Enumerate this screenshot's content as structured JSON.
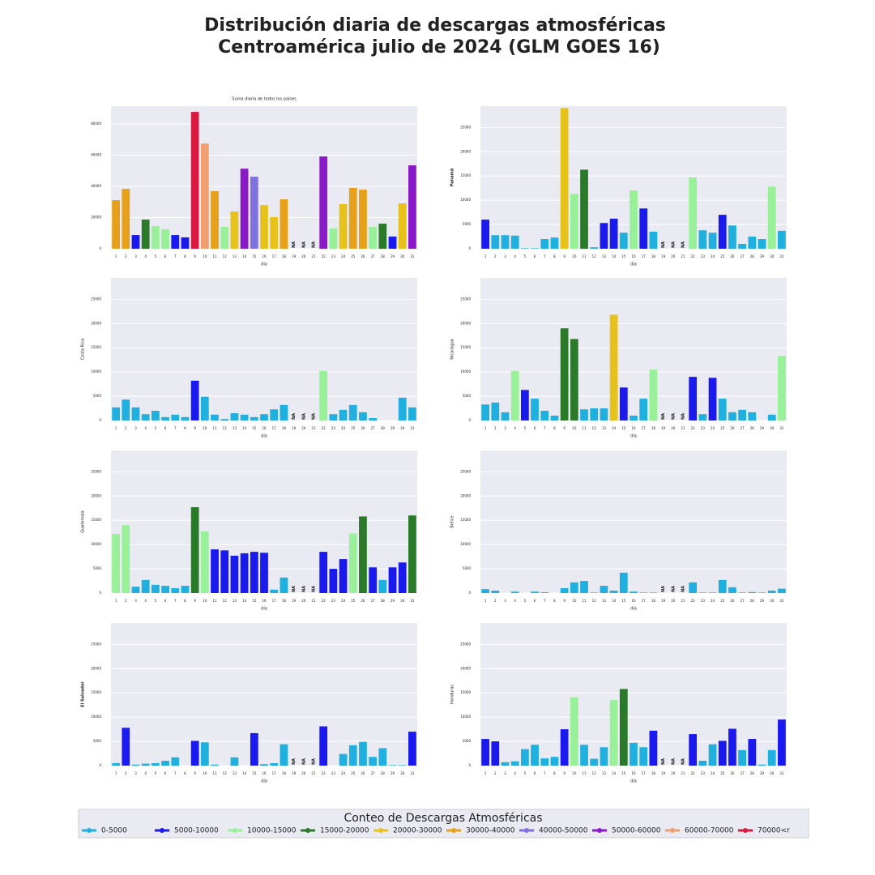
{
  "title": [
    "Distribución diaria de descargas atmosféricas",
    "Centroamérica julio de 2024 (GLM GOES 16)"
  ],
  "chart_data": [
    {
      "type": "bar",
      "title": "Suma diaria de todos los países",
      "xlabel": "día",
      "na_label": "NA",
      "grid": true,
      "categories": [
        "1",
        "2",
        "3",
        "4",
        "5",
        "6",
        "7",
        "8",
        "9",
        "10",
        "11",
        "12",
        "13",
        "14",
        "15",
        "16",
        "17",
        "18",
        "19",
        "20",
        "21",
        "22",
        "23",
        "24",
        "25",
        "26",
        "27",
        "28",
        "29",
        "30",
        "31"
      ],
      "values": [
        31200,
        38400,
        8800,
        18700,
        14500,
        12500,
        8800,
        7300,
        87800,
        67500,
        36900,
        14000,
        23900,
        51400,
        46200,
        28000,
        20300,
        31700,
        null,
        null,
        null,
        59200,
        13000,
        28600,
        39000,
        37900,
        14000,
        16100,
        7800,
        29100,
        53500
      ],
      "colors": [
        "#e6a01a",
        "#e6a01a",
        "#1a1aee",
        "#2a7a2a",
        "#98f098",
        "#98f098",
        "#1a1aee",
        "#1a1aee",
        "#d81a40",
        "#f0a070",
        "#e6a01a",
        "#98f098",
        "#e6c21a",
        "#8a1ac8",
        "#8070e0",
        "#e6c21a",
        "#e6c21a",
        "#e6a01a",
        null,
        null,
        null,
        "#8a1ac8",
        "#98f098",
        "#e6c21a",
        "#e6a01a",
        "#e6a01a",
        "#98f098",
        "#2a7a2a",
        "#1a1aee",
        "#e6c21a",
        "#8a1ac8"
      ],
      "ylim": [
        0,
        91500
      ],
      "yticks": [
        0,
        20000,
        40000,
        60000,
        80000
      ]
    },
    {
      "type": "bar",
      "ylabel": "Panamá",
      "ylabel_color": "#e00000",
      "xlabel": "día",
      "na_label": "NA",
      "grid": true,
      "categories": [
        "1",
        "2",
        "3",
        "4",
        "5",
        "6",
        "7",
        "8",
        "9",
        "10",
        "11",
        "12",
        "13",
        "14",
        "15",
        "16",
        "17",
        "18",
        "19",
        "20",
        "21",
        "22",
        "23",
        "24",
        "25",
        "26",
        "27",
        "28",
        "29",
        "30",
        "31"
      ],
      "values": [
        6000,
        2800,
        2800,
        2700,
        100,
        100,
        2000,
        2300,
        29000,
        11300,
        16300,
        300,
        5300,
        6200,
        3300,
        12000,
        8300,
        3500,
        null,
        null,
        null,
        14700,
        3800,
        3300,
        7000,
        4800,
        1000,
        2500,
        2000,
        12800,
        3700
      ],
      "colors": [
        "#1a1aee",
        "#1fb0e0",
        "#1fb0e0",
        "#1fb0e0",
        "#1fb0e0",
        "#1fb0e0",
        "#1fb0e0",
        "#1fb0e0",
        "#e6c21a",
        "#98f098",
        "#2a7a2a",
        "#1fb0e0",
        "#1a1aee",
        "#1a1aee",
        "#1fb0e0",
        "#98f098",
        "#1a1aee",
        "#1fb0e0",
        null,
        null,
        null,
        "#98f098",
        "#1fb0e0",
        "#1fb0e0",
        "#1a1aee",
        "#1fb0e0",
        "#1fb0e0",
        "#1fb0e0",
        "#1fb0e0",
        "#98f098",
        "#1fb0e0"
      ],
      "ylim": [
        0,
        29400
      ],
      "yticks": [
        0,
        5000,
        10000,
        15000,
        20000,
        25000
      ]
    },
    {
      "type": "bar",
      "ylabel": "Costa Rica",
      "ylabel_color": "#3050c0",
      "xlabel": "día",
      "na_label": "NA",
      "grid": true,
      "categories": [
        "1",
        "2",
        "3",
        "4",
        "5",
        "6",
        "7",
        "8",
        "9",
        "10",
        "11",
        "12",
        "13",
        "14",
        "15",
        "16",
        "17",
        "18",
        "19",
        "20",
        "21",
        "22",
        "23",
        "24",
        "25",
        "26",
        "27",
        "28",
        "29",
        "30",
        "31"
      ],
      "values": [
        2700,
        4300,
        2700,
        1300,
        2000,
        700,
        1200,
        700,
        8200,
        4900,
        1200,
        300,
        1500,
        1200,
        700,
        1300,
        2300,
        3200,
        null,
        null,
        null,
        10200,
        1300,
        2200,
        3200,
        1700,
        500,
        0,
        0,
        4700,
        2700
      ],
      "colors": [
        "#1fb0e0",
        "#1fb0e0",
        "#1fb0e0",
        "#1fb0e0",
        "#1fb0e0",
        "#1fb0e0",
        "#1fb0e0",
        "#1fb0e0",
        "#1a1aee",
        "#1fb0e0",
        "#1fb0e0",
        "#1fb0e0",
        "#1fb0e0",
        "#1fb0e0",
        "#1fb0e0",
        "#1fb0e0",
        "#1fb0e0",
        "#1fb0e0",
        null,
        null,
        null,
        "#98f098",
        "#1fb0e0",
        "#1fb0e0",
        "#1fb0e0",
        "#1fb0e0",
        "#1fb0e0",
        "#1fb0e0",
        "#1fb0e0",
        "#1fb0e0",
        "#1fb0e0"
      ],
      "ylim": [
        0,
        29400
      ],
      "yticks": [
        0,
        5000,
        10000,
        15000,
        20000,
        25000
      ]
    },
    {
      "type": "bar",
      "ylabel": "Nicaragua",
      "ylabel_color": "#40a0d0",
      "xlabel": "día",
      "na_label": "NA",
      "grid": true,
      "categories": [
        "1",
        "2",
        "3",
        "4",
        "5",
        "6",
        "7",
        "8",
        "9",
        "10",
        "11",
        "12",
        "13",
        "14",
        "15",
        "16",
        "17",
        "18",
        "19",
        "20",
        "21",
        "22",
        "23",
        "24",
        "25",
        "26",
        "27",
        "28",
        "29",
        "30",
        "31"
      ],
      "values": [
        3300,
        3700,
        1700,
        10200,
        6300,
        4500,
        2000,
        1000,
        19000,
        16800,
        2300,
        2500,
        2500,
        21800,
        6800,
        1000,
        4500,
        10500,
        null,
        null,
        null,
        9000,
        1300,
        8800,
        4500,
        1700,
        2200,
        1700,
        0,
        1200,
        13300
      ],
      "colors": [
        "#1fb0e0",
        "#1fb0e0",
        "#1fb0e0",
        "#98f098",
        "#1a1aee",
        "#1fb0e0",
        "#1fb0e0",
        "#1fb0e0",
        "#2a7a2a",
        "#2a7a2a",
        "#1fb0e0",
        "#1fb0e0",
        "#1fb0e0",
        "#e6c21a",
        "#1a1aee",
        "#1fb0e0",
        "#1fb0e0",
        "#98f098",
        null,
        null,
        null,
        "#1a1aee",
        "#1fb0e0",
        "#1a1aee",
        "#1fb0e0",
        "#1fb0e0",
        "#1fb0e0",
        "#1fb0e0",
        "#1fb0e0",
        "#1fb0e0",
        "#98f098"
      ],
      "ylim": [
        0,
        29400
      ],
      "yticks": [
        0,
        5000,
        10000,
        15000,
        20000,
        25000
      ]
    },
    {
      "type": "bar",
      "ylabel": "Guatemala",
      "ylabel_color": "#6a5acd",
      "xlabel": "día",
      "na_label": "NA",
      "grid": true,
      "categories": [
        "1",
        "2",
        "3",
        "4",
        "5",
        "6",
        "7",
        "8",
        "9",
        "10",
        "11",
        "12",
        "13",
        "14",
        "15",
        "16",
        "17",
        "18",
        "19",
        "20",
        "21",
        "22",
        "23",
        "24",
        "25",
        "26",
        "27",
        "28",
        "29",
        "30",
        "31"
      ],
      "values": [
        12200,
        14000,
        1300,
        2700,
        1700,
        1500,
        1000,
        1500,
        17700,
        12700,
        9000,
        8800,
        7700,
        8200,
        8500,
        8300,
        700,
        3200,
        null,
        null,
        null,
        8500,
        5000,
        7000,
        12300,
        15800,
        5300,
        2700,
        5300,
        6300,
        16000
      ],
      "colors": [
        "#98f098",
        "#98f098",
        "#1fb0e0",
        "#1fb0e0",
        "#1fb0e0",
        "#1fb0e0",
        "#1fb0e0",
        "#1fb0e0",
        "#2a7a2a",
        "#98f098",
        "#1a1aee",
        "#1a1aee",
        "#1a1aee",
        "#1a1aee",
        "#1a1aee",
        "#1a1aee",
        "#1fb0e0",
        "#1fb0e0",
        null,
        null,
        null,
        "#1a1aee",
        "#1a1aee",
        "#1a1aee",
        "#98f098",
        "#2a7a2a",
        "#1a1aee",
        "#1fb0e0",
        "#1a1aee",
        "#1a1aee",
        "#2a7a2a"
      ],
      "ylim": [
        0,
        29400
      ],
      "yticks": [
        0,
        5000,
        10000,
        15000,
        20000,
        25000
      ]
    },
    {
      "type": "bar",
      "ylabel": "Belice",
      "ylabel_color": "#505050",
      "xlabel": "día",
      "na_label": "NA",
      "grid": true,
      "categories": [
        "1",
        "2",
        "3",
        "4",
        "5",
        "6",
        "7",
        "8",
        "9",
        "10",
        "11",
        "12",
        "13",
        "14",
        "15",
        "16",
        "17",
        "18",
        "19",
        "20",
        "21",
        "22",
        "23",
        "24",
        "25",
        "26",
        "27",
        "28",
        "29",
        "30",
        "31"
      ],
      "values": [
        800,
        500,
        0,
        300,
        0,
        300,
        150,
        0,
        1000,
        2200,
        2500,
        100,
        1500,
        500,
        4200,
        300,
        100,
        100,
        null,
        null,
        null,
        2200,
        100,
        100,
        2700,
        1200,
        100,
        200,
        100,
        500,
        900
      ],
      "colors": [
        "#1fb0e0",
        "#1fb0e0",
        "#1fb0e0",
        "#1fb0e0",
        "#1fb0e0",
        "#1fb0e0",
        "#1fb0e0",
        "#1fb0e0",
        "#1fb0e0",
        "#1fb0e0",
        "#1fb0e0",
        "#1fb0e0",
        "#1fb0e0",
        "#1fb0e0",
        "#1fb0e0",
        "#1fb0e0",
        "#1fb0e0",
        "#1fb0e0",
        null,
        null,
        null,
        "#1fb0e0",
        "#1fb0e0",
        "#1fb0e0",
        "#1fb0e0",
        "#1fb0e0",
        "#1fb0e0",
        "#1fb0e0",
        "#1fb0e0",
        "#1fb0e0",
        "#1fb0e0"
      ],
      "ylim": [
        0,
        29400
      ],
      "yticks": [
        0,
        5000,
        10000,
        15000,
        20000,
        25000
      ]
    },
    {
      "type": "bar",
      "ylabel": "El Salvador",
      "ylabel_color": "#008000",
      "xlabel": "día",
      "na_label": "NA",
      "grid": true,
      "categories": [
        "1",
        "2",
        "3",
        "4",
        "5",
        "6",
        "7",
        "8",
        "9",
        "10",
        "11",
        "12",
        "13",
        "14",
        "15",
        "16",
        "17",
        "18",
        "19",
        "20",
        "21",
        "22",
        "23",
        "24",
        "25",
        "26",
        "27",
        "28",
        "29",
        "30",
        "31"
      ],
      "values": [
        500,
        7800,
        200,
        400,
        500,
        1000,
        1700,
        0,
        5100,
        4800,
        200,
        0,
        1700,
        0,
        6700,
        300,
        500,
        4400,
        null,
        null,
        null,
        8100,
        0,
        2400,
        4200,
        4900,
        1800,
        3600,
        100,
        100,
        7000
      ],
      "colors": [
        "#1fb0e0",
        "#1a1aee",
        "#1fb0e0",
        "#1fb0e0",
        "#1fb0e0",
        "#1fb0e0",
        "#1fb0e0",
        "#1fb0e0",
        "#1a1aee",
        "#1fb0e0",
        "#1fb0e0",
        "#1fb0e0",
        "#1fb0e0",
        "#1fb0e0",
        "#1a1aee",
        "#1fb0e0",
        "#1fb0e0",
        "#1fb0e0",
        null,
        null,
        null,
        "#1a1aee",
        "#1fb0e0",
        "#1fb0e0",
        "#1fb0e0",
        "#1fb0e0",
        "#1fb0e0",
        "#1fb0e0",
        "#1fb0e0",
        "#1fb0e0",
        "#1a1aee"
      ],
      "ylim": [
        0,
        29400
      ],
      "yticks": [
        0,
        5000,
        10000,
        15000,
        20000,
        25000
      ]
    },
    {
      "type": "bar",
      "ylabel": "Honduras",
      "ylabel_color": "#4682b4",
      "xlabel": "día",
      "na_label": "NA",
      "grid": true,
      "categories": [
        "1",
        "2",
        "3",
        "4",
        "5",
        "6",
        "7",
        "8",
        "9",
        "10",
        "11",
        "12",
        "13",
        "14",
        "15",
        "16",
        "17",
        "18",
        "19",
        "20",
        "21",
        "22",
        "23",
        "24",
        "25",
        "26",
        "27",
        "28",
        "29",
        "30",
        "31"
      ],
      "values": [
        5500,
        5000,
        700,
        900,
        3400,
        4300,
        1500,
        1800,
        7500,
        14100,
        4300,
        1400,
        3800,
        13500,
        15800,
        4700,
        3800,
        7200,
        null,
        null,
        null,
        6500,
        1000,
        4400,
        5100,
        7600,
        3200,
        5500,
        200,
        3200,
        9500
      ],
      "colors": [
        "#1a1aee",
        "#1a1aee",
        "#1fb0e0",
        "#1fb0e0",
        "#1fb0e0",
        "#1fb0e0",
        "#1fb0e0",
        "#1fb0e0",
        "#1a1aee",
        "#98f098",
        "#1fb0e0",
        "#1fb0e0",
        "#1fb0e0",
        "#98f098",
        "#2a7a2a",
        "#1fb0e0",
        "#1fb0e0",
        "#1a1aee",
        null,
        null,
        null,
        "#1a1aee",
        "#1fb0e0",
        "#1fb0e0",
        "#1a1aee",
        "#1a1aee",
        "#1fb0e0",
        "#1a1aee",
        "#1fb0e0",
        "#1fb0e0",
        "#1a1aee"
      ],
      "ylim": [
        0,
        29400
      ],
      "yticks": [
        0,
        5000,
        10000,
        15000,
        20000,
        25000
      ]
    }
  ],
  "legend": {
    "title": "Conteo de Descargas Atmosféricas",
    "entries": [
      {
        "label": "0-5000",
        "color": "#1fb0e0"
      },
      {
        "label": "5000-10000",
        "color": "#1a1aee"
      },
      {
        "label": "10000-15000",
        "color": "#98f098"
      },
      {
        "label": "15000-20000",
        "color": "#2a7a2a"
      },
      {
        "label": "20000-30000",
        "color": "#e6c21a"
      },
      {
        "label": "30000-40000",
        "color": "#e6a01a"
      },
      {
        "label": "40000-50000",
        "color": "#8070e0"
      },
      {
        "label": "50000-60000",
        "color": "#8a1ac8"
      },
      {
        "label": "60000-70000",
        "color": "#f0a070"
      },
      {
        "label": "70000<r",
        "color": "#d81a40"
      }
    ]
  }
}
